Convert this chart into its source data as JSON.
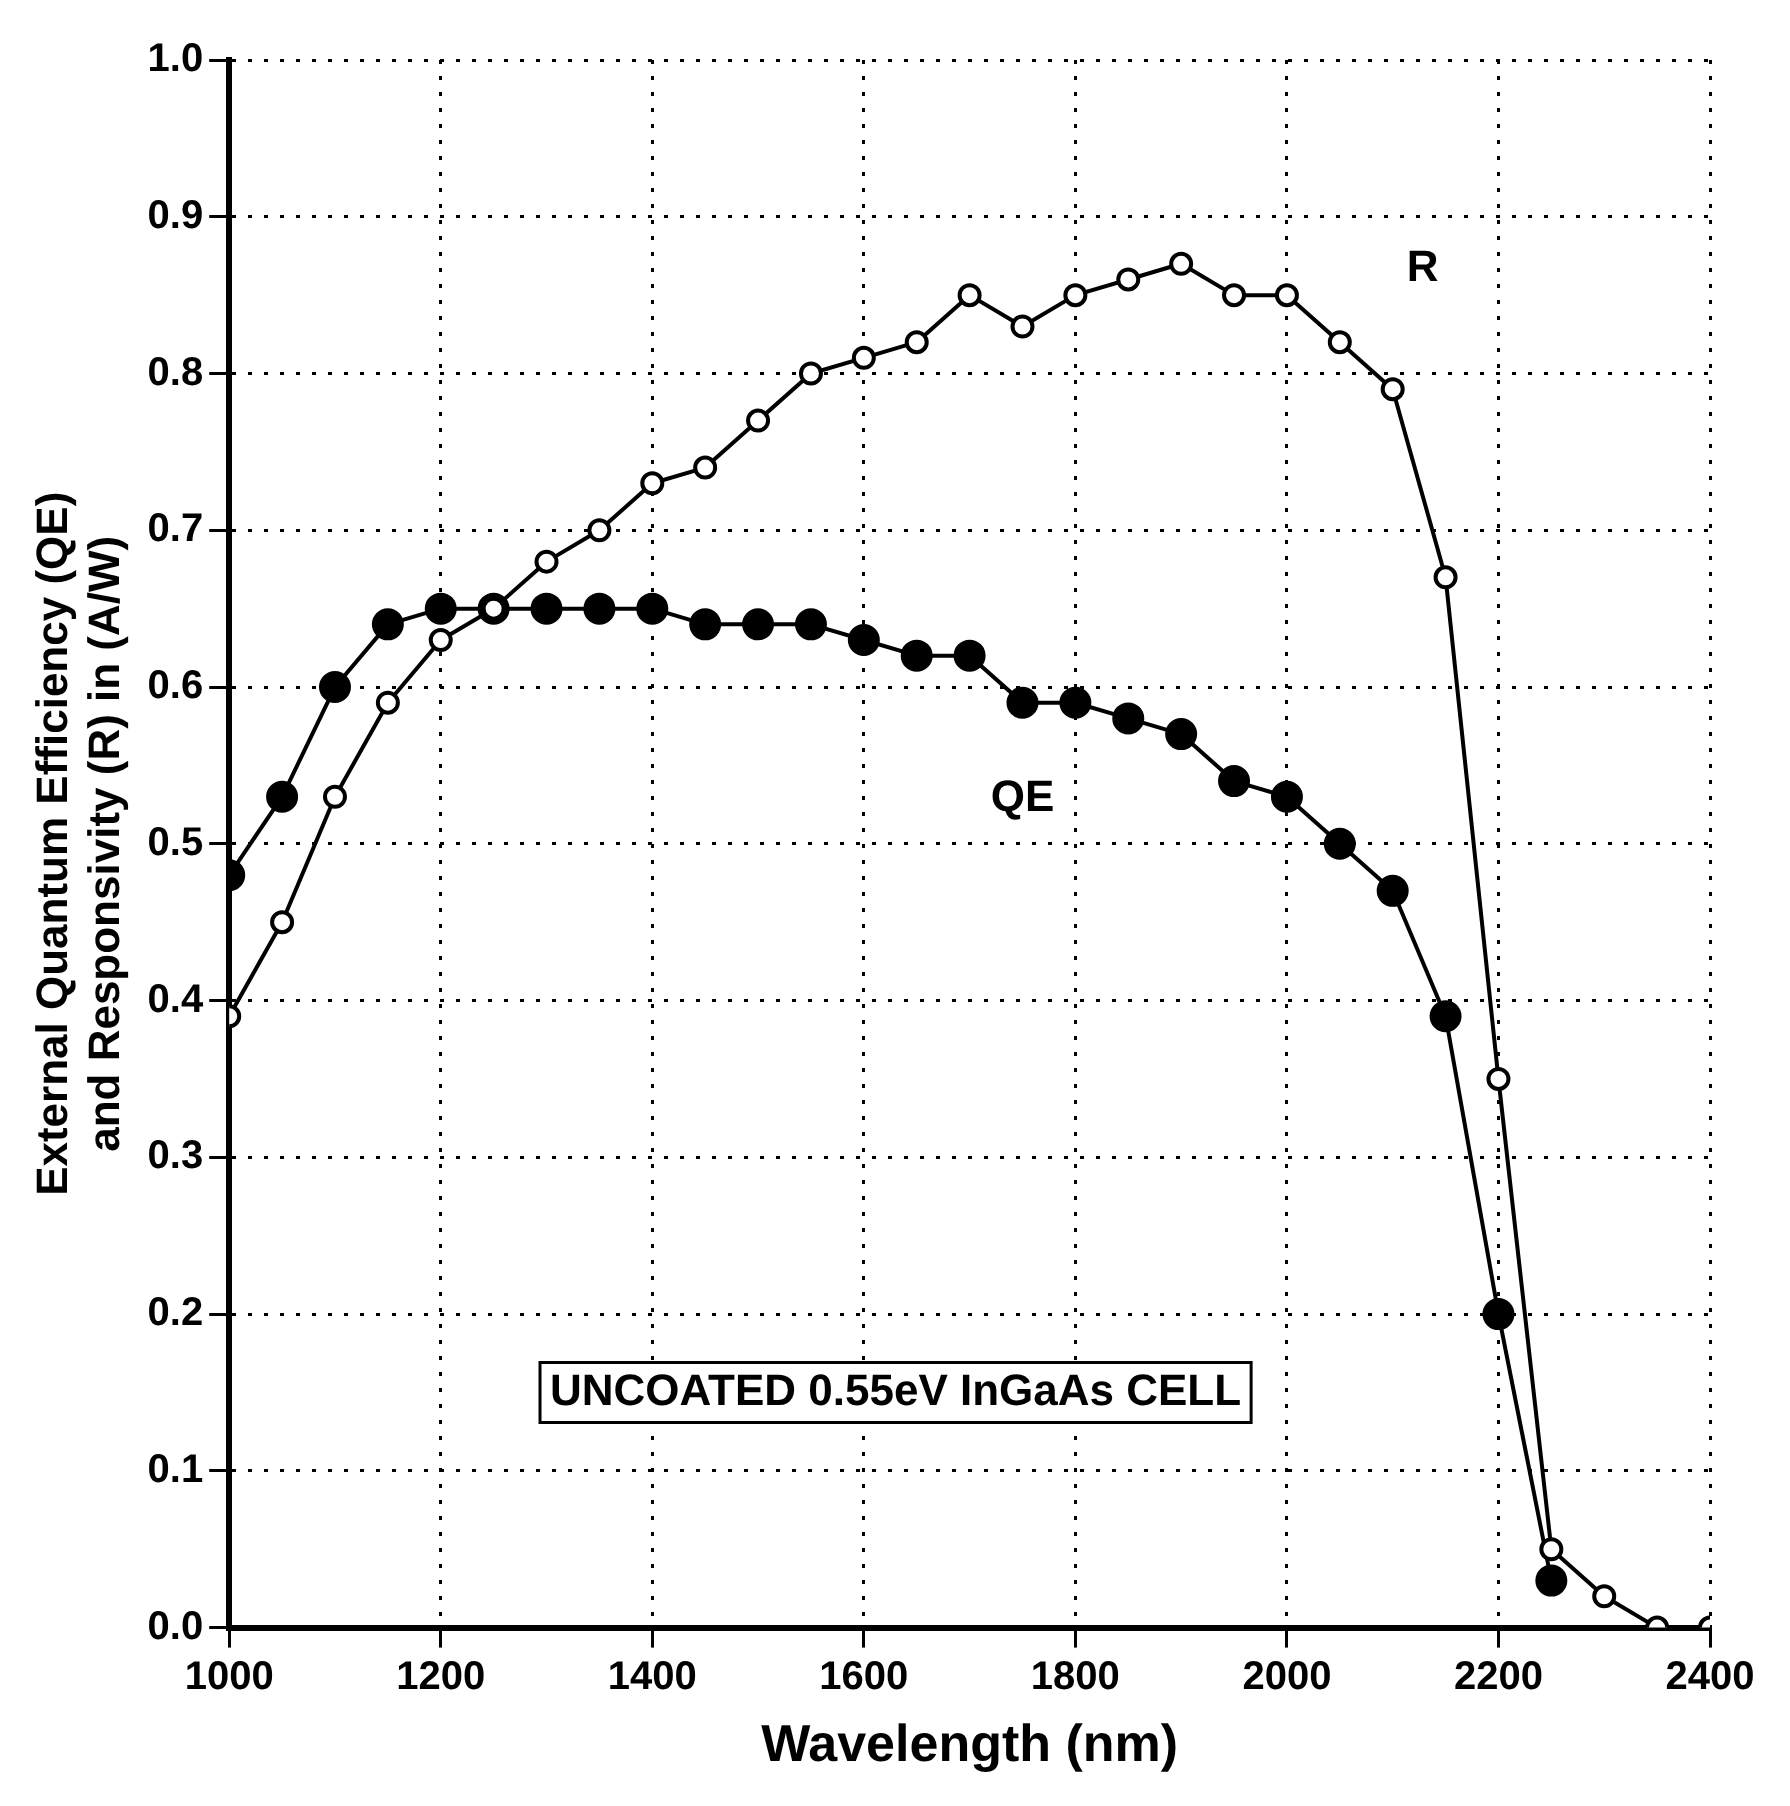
{
  "chart_data": {
    "type": "line",
    "xlabel": "Wavelength (nm)",
    "ylabel": "External Quantum Efficiency (QE)\nand Responsivity (R) in (A/W)",
    "xlim": [
      1000,
      2400
    ],
    "xticks": [
      1000,
      1200,
      1400,
      1600,
      1800,
      2000,
      2200,
      2400
    ],
    "ylim": [
      0,
      1.0
    ],
    "yticks": [
      {
        "value": 0,
        "label": "0.0"
      },
      0.1,
      0.2,
      0.3,
      0.4,
      0.5,
      0.6,
      0.7,
      0.8,
      0.9,
      {
        "value": 1,
        "label": "1.0"
      }
    ],
    "grid": true,
    "marker": "circle",
    "legend": false,
    "series": [
      {
        "name": "R",
        "color": "#000000",
        "x": [
          1000,
          1050,
          1100,
          1150,
          1200,
          1250,
          1300,
          1350,
          1400,
          1450,
          1500,
          1550,
          1600,
          1650,
          1700,
          1750,
          1800,
          1850,
          1900,
          1950,
          2000,
          2050,
          2100,
          2150,
          2200,
          2250,
          2300,
          2350,
          2400
        ],
        "values": [
          0.39,
          0.45,
          0.53,
          0.59,
          0.63,
          0.65,
          0.68,
          0.7,
          0.73,
          0.74,
          0.77,
          0.8,
          0.81,
          0.82,
          0.85,
          0.83,
          0.85,
          0.86,
          0.87,
          0.85,
          0.85,
          0.82,
          0.79,
          0.67,
          0.35,
          0.05,
          0.02,
          0.0,
          0.0
        ]
      },
      {
        "name": "QE",
        "color": "#000000",
        "x": [
          1000,
          1050,
          1100,
          1150,
          1200,
          1250,
          1300,
          1350,
          1400,
          1450,
          1500,
          1550,
          1600,
          1650,
          1700,
          1750,
          1800,
          1850,
          1900,
          1950,
          2000,
          2050,
          2100,
          2150,
          2200,
          2250
        ],
        "values": [
          0.48,
          0.53,
          0.6,
          0.64,
          0.65,
          0.65,
          0.65,
          0.65,
          0.65,
          0.64,
          0.64,
          0.64,
          0.63,
          0.62,
          0.62,
          0.59,
          0.59,
          0.58,
          0.57,
          0.54,
          0.53,
          0.5,
          0.47,
          0.39,
          0.2,
          0.03
        ]
      }
    ],
    "annotations": [
      "UNCOATED 0.55eV InGaAs CELL"
    ]
  }
}
